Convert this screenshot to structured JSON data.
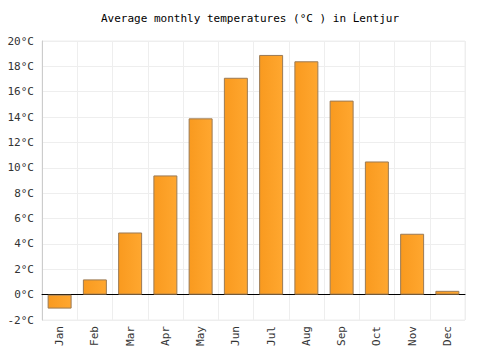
{
  "chart_data": {
    "type": "bar",
    "title": "Average monthly temperatures (°C ) in Ĺentjur",
    "categories": [
      "Jan",
      "Feb",
      "Mar",
      "Apr",
      "May",
      "Jun",
      "Jul",
      "Aug",
      "Sep",
      "Oct",
      "Nov",
      "Dec"
    ],
    "values": [
      -1.1,
      1.2,
      4.9,
      9.4,
      13.9,
      17.1,
      18.9,
      18.4,
      15.3,
      10.5,
      4.8,
      0.3
    ],
    "color": "#ffa72f",
    "ylim": [
      -2,
      20
    ],
    "yticks": [
      {
        "value": -2,
        "label": "-2°C"
      },
      {
        "value": 0,
        "label": "0°C"
      },
      {
        "value": 2,
        "label": "2°C"
      },
      {
        "value": 4,
        "label": "4°C"
      },
      {
        "value": 6,
        "label": "6°C"
      },
      {
        "value": 8,
        "label": "8°C"
      },
      {
        "value": 10,
        "label": "10°C"
      },
      {
        "value": 12,
        "label": "12°C"
      },
      {
        "value": 14,
        "label": "14°C"
      },
      {
        "value": 16,
        "label": "16°C"
      },
      {
        "value": 18,
        "label": "18°C"
      },
      {
        "value": 20,
        "label": "20°C"
      }
    ],
    "grid": true
  }
}
